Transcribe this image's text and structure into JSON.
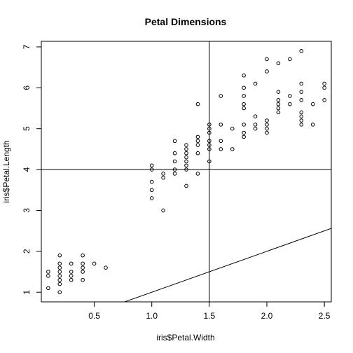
{
  "chart_data": {
    "type": "scatter",
    "title": "Petal Dimensions",
    "xlabel": "iris$Petal.Width",
    "ylabel": "iris$Petal.Length",
    "xlim": [
      0.04,
      2.56
    ],
    "ylim": [
      0.764,
      7.136
    ],
    "x_ticks": [
      0.5,
      1.0,
      1.5,
      2.0,
      2.5
    ],
    "x_tick_labels": [
      "0.5",
      "1.0",
      "1.5",
      "2.0",
      "2.5"
    ],
    "y_ticks": [
      1,
      2,
      3,
      4,
      5,
      6,
      7
    ],
    "y_tick_labels": [
      "1",
      "2",
      "3",
      "4",
      "5",
      "6",
      "7"
    ],
    "grid": false,
    "legend": "none",
    "reference_lines": {
      "horizontal_y": 4,
      "vertical_x": 1.5,
      "diagonal": {
        "intercept": 0,
        "slope": 1
      }
    },
    "points": [
      [
        0.1,
        1.1
      ],
      [
        0.1,
        1.4
      ],
      [
        0.1,
        1.5
      ],
      [
        0.2,
        1.0
      ],
      [
        0.2,
        1.2
      ],
      [
        0.2,
        1.3
      ],
      [
        0.2,
        1.4
      ],
      [
        0.2,
        1.5
      ],
      [
        0.2,
        1.6
      ],
      [
        0.2,
        1.7
      ],
      [
        0.2,
        1.9
      ],
      [
        0.3,
        1.3
      ],
      [
        0.3,
        1.4
      ],
      [
        0.3,
        1.5
      ],
      [
        0.3,
        1.7
      ],
      [
        0.4,
        1.3
      ],
      [
        0.4,
        1.5
      ],
      [
        0.4,
        1.6
      ],
      [
        0.4,
        1.7
      ],
      [
        0.4,
        1.9
      ],
      [
        0.5,
        1.7
      ],
      [
        0.6,
        1.6
      ],
      [
        1.0,
        3.3
      ],
      [
        1.0,
        3.5
      ],
      [
        1.0,
        3.7
      ],
      [
        1.0,
        4.0
      ],
      [
        1.0,
        4.1
      ],
      [
        1.1,
        3.0
      ],
      [
        1.1,
        3.8
      ],
      [
        1.1,
        3.9
      ],
      [
        1.2,
        3.9
      ],
      [
        1.2,
        4.0
      ],
      [
        1.2,
        4.2
      ],
      [
        1.2,
        4.4
      ],
      [
        1.2,
        4.7
      ],
      [
        1.3,
        3.6
      ],
      [
        1.3,
        4.0
      ],
      [
        1.3,
        4.1
      ],
      [
        1.3,
        4.2
      ],
      [
        1.3,
        4.3
      ],
      [
        1.3,
        4.4
      ],
      [
        1.3,
        4.5
      ],
      [
        1.3,
        4.6
      ],
      [
        1.4,
        3.9
      ],
      [
        1.4,
        4.4
      ],
      [
        1.4,
        4.6
      ],
      [
        1.4,
        4.7
      ],
      [
        1.4,
        4.8
      ],
      [
        1.4,
        5.6
      ],
      [
        1.5,
        4.2
      ],
      [
        1.5,
        4.5
      ],
      [
        1.5,
        4.6
      ],
      [
        1.5,
        4.7
      ],
      [
        1.5,
        4.9
      ],
      [
        1.5,
        5.0
      ],
      [
        1.5,
        5.1
      ],
      [
        1.6,
        4.5
      ],
      [
        1.6,
        4.7
      ],
      [
        1.6,
        5.1
      ],
      [
        1.6,
        5.8
      ],
      [
        1.7,
        4.5
      ],
      [
        1.7,
        5.0
      ],
      [
        1.8,
        4.8
      ],
      [
        1.8,
        4.9
      ],
      [
        1.8,
        5.1
      ],
      [
        1.8,
        5.5
      ],
      [
        1.8,
        5.6
      ],
      [
        1.8,
        5.8
      ],
      [
        1.8,
        6.0
      ],
      [
        1.8,
        6.3
      ],
      [
        1.9,
        5.0
      ],
      [
        1.9,
        5.1
      ],
      [
        1.9,
        5.3
      ],
      [
        1.9,
        6.1
      ],
      [
        2.0,
        4.9
      ],
      [
        2.0,
        5.0
      ],
      [
        2.0,
        5.1
      ],
      [
        2.0,
        5.2
      ],
      [
        2.0,
        6.4
      ],
      [
        2.0,
        6.7
      ],
      [
        2.1,
        5.4
      ],
      [
        2.1,
        5.5
      ],
      [
        2.1,
        5.6
      ],
      [
        2.1,
        5.7
      ],
      [
        2.1,
        5.9
      ],
      [
        2.1,
        6.6
      ],
      [
        2.2,
        5.6
      ],
      [
        2.2,
        5.8
      ],
      [
        2.2,
        6.7
      ],
      [
        2.3,
        5.1
      ],
      [
        2.3,
        5.2
      ],
      [
        2.3,
        5.3
      ],
      [
        2.3,
        5.4
      ],
      [
        2.3,
        5.7
      ],
      [
        2.3,
        5.9
      ],
      [
        2.3,
        6.1
      ],
      [
        2.3,
        6.9
      ],
      [
        2.4,
        5.1
      ],
      [
        2.4,
        5.6
      ],
      [
        2.5,
        5.7
      ],
      [
        2.5,
        6.0
      ],
      [
        2.5,
        6.1
      ]
    ]
  }
}
